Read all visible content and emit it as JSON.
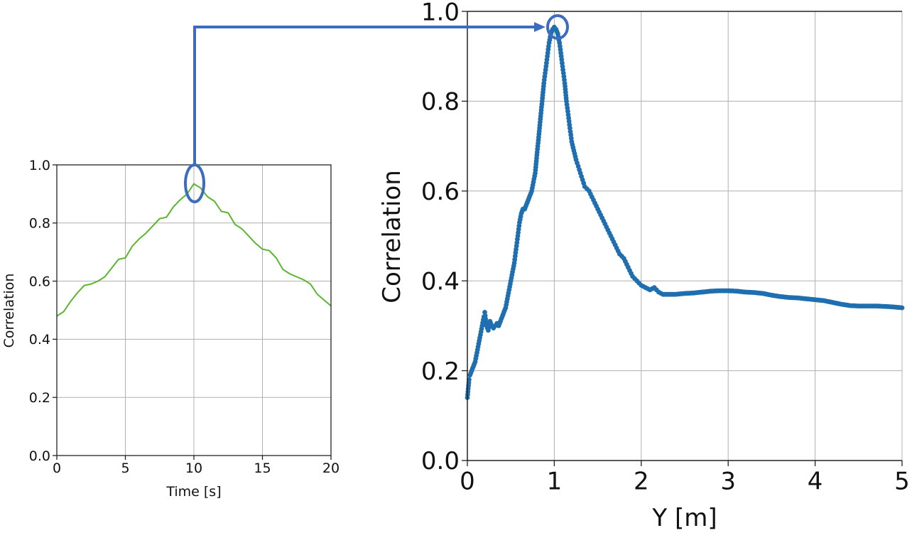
{
  "chart_data": [
    {
      "type": "line",
      "title": "",
      "xlabel": "Time [s]",
      "ylabel": "Correlation",
      "xlim": [
        0,
        20
      ],
      "ylim": [
        0,
        1.0
      ],
      "xticks": [
        "0",
        "5",
        "10",
        "15",
        "20"
      ],
      "yticks": [
        "0.0",
        "0.2",
        "0.4",
        "0.6",
        "0.8",
        "1.0"
      ],
      "grid": true,
      "series": [
        {
          "name": "correlation_vs_time",
          "color": "#5ab52f",
          "x": [
            0,
            0.5,
            1,
            1.5,
            2,
            2.5,
            3,
            3.5,
            4,
            4.5,
            5,
            5.5,
            6,
            6.5,
            7,
            7.5,
            8,
            8.5,
            9,
            9.5,
            10,
            10.5,
            11,
            11.5,
            12,
            12.5,
            13,
            13.5,
            14,
            14.5,
            15,
            15.5,
            16,
            16.5,
            17,
            17.5,
            18,
            18.5,
            19,
            19.5,
            20
          ],
          "y": [
            0.48,
            0.495,
            0.53,
            0.56,
            0.585,
            0.59,
            0.6,
            0.615,
            0.645,
            0.675,
            0.68,
            0.72,
            0.745,
            0.765,
            0.79,
            0.815,
            0.82,
            0.855,
            0.88,
            0.9,
            0.935,
            0.92,
            0.89,
            0.875,
            0.84,
            0.835,
            0.795,
            0.78,
            0.755,
            0.73,
            0.71,
            0.705,
            0.68,
            0.64,
            0.625,
            0.615,
            0.605,
            0.59,
            0.555,
            0.535,
            0.515
          ]
        }
      ],
      "annotation": {
        "type": "ellipse",
        "x": 10,
        "y": 0.92,
        "color": "#3b6cc0"
      }
    },
    {
      "type": "scatter",
      "title": "",
      "xlabel": "Y [m]",
      "ylabel": "Correlation",
      "xlim": [
        0,
        5
      ],
      "ylim": [
        0,
        1.0
      ],
      "xticks": [
        "0",
        "1",
        "2",
        "3",
        "4",
        "5"
      ],
      "yticks": [
        "0.0",
        "0.2",
        "0.4",
        "0.6",
        "0.8",
        "1.0"
      ],
      "grid": true,
      "series": [
        {
          "name": "correlation_vs_Y",
          "color": "#1f6fb0",
          "x": [
            0.0,
            0.01,
            0.02,
            0.03,
            0.05,
            0.07,
            0.09,
            0.11,
            0.13,
            0.15,
            0.17,
            0.19,
            0.2,
            0.22,
            0.24,
            0.26,
            0.28,
            0.3,
            0.32,
            0.34,
            0.36,
            0.38,
            0.4,
            0.42,
            0.44,
            0.46,
            0.48,
            0.5,
            0.52,
            0.54,
            0.56,
            0.58,
            0.6,
            0.62,
            0.64,
            0.66,
            0.68,
            0.7,
            0.72,
            0.74,
            0.76,
            0.78,
            0.8,
            0.82,
            0.84,
            0.86,
            0.88,
            0.9,
            0.92,
            0.94,
            0.96,
            0.98,
            1.0,
            1.02,
            1.04,
            1.06,
            1.08,
            1.1,
            1.12,
            1.14,
            1.16,
            1.18,
            1.2,
            1.25,
            1.3,
            1.35,
            1.4,
            1.45,
            1.5,
            1.55,
            1.6,
            1.65,
            1.7,
            1.75,
            1.8,
            1.85,
            1.9,
            1.95,
            2.0,
            2.05,
            2.1,
            2.15,
            2.2,
            2.25,
            2.3,
            2.4,
            2.5,
            2.6,
            2.7,
            2.8,
            2.9,
            3.0,
            3.1,
            3.2,
            3.3,
            3.4,
            3.5,
            3.6,
            3.7,
            3.8,
            3.9,
            4.0,
            4.1,
            4.2,
            4.3,
            4.4,
            4.5,
            4.6,
            4.7,
            4.8,
            4.9,
            5.0
          ],
          "y": [
            0.14,
            0.16,
            0.18,
            0.19,
            0.2,
            0.21,
            0.22,
            0.24,
            0.26,
            0.28,
            0.3,
            0.32,
            0.33,
            0.3,
            0.29,
            0.31,
            0.3,
            0.295,
            0.3,
            0.305,
            0.3,
            0.31,
            0.32,
            0.33,
            0.34,
            0.36,
            0.38,
            0.4,
            0.42,
            0.44,
            0.47,
            0.5,
            0.53,
            0.55,
            0.56,
            0.56,
            0.57,
            0.58,
            0.59,
            0.6,
            0.62,
            0.64,
            0.68,
            0.72,
            0.76,
            0.8,
            0.84,
            0.87,
            0.9,
            0.93,
            0.95,
            0.96,
            0.965,
            0.96,
            0.95,
            0.93,
            0.9,
            0.87,
            0.84,
            0.8,
            0.77,
            0.74,
            0.71,
            0.67,
            0.64,
            0.61,
            0.6,
            0.58,
            0.56,
            0.54,
            0.52,
            0.5,
            0.48,
            0.46,
            0.45,
            0.43,
            0.41,
            0.4,
            0.39,
            0.385,
            0.38,
            0.385,
            0.375,
            0.37,
            0.37,
            0.37,
            0.372,
            0.373,
            0.375,
            0.377,
            0.378,
            0.378,
            0.377,
            0.375,
            0.374,
            0.372,
            0.368,
            0.365,
            0.363,
            0.362,
            0.36,
            0.358,
            0.356,
            0.352,
            0.348,
            0.345,
            0.344,
            0.344,
            0.344,
            0.343,
            0.342,
            0.34
          ]
        }
      ],
      "annotation": {
        "type": "ellipse",
        "x": 1.03,
        "y": 0.96,
        "color": "#3b6cc0"
      }
    }
  ],
  "connector": {
    "type": "arrow",
    "from": "left-chart-peak",
    "to": "right-chart-peak",
    "color": "#3b6cc0"
  }
}
